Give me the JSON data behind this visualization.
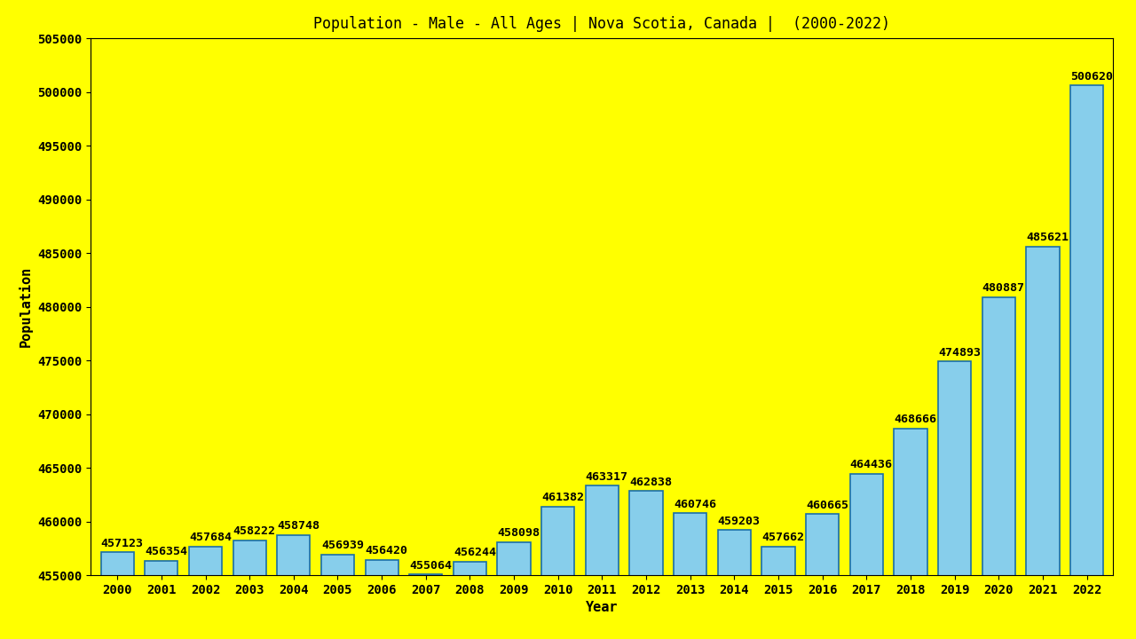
{
  "title": "Population - Male - All Ages | Nova Scotia, Canada |  (2000-2022)",
  "xlabel": "Year",
  "ylabel": "Population",
  "background_color": "#FFFF00",
  "bar_color": "#87CEEB",
  "bar_edge_color": "#1a6ea8",
  "text_color": "#000000",
  "years": [
    2000,
    2001,
    2002,
    2003,
    2004,
    2005,
    2006,
    2007,
    2008,
    2009,
    2010,
    2011,
    2012,
    2013,
    2014,
    2015,
    2016,
    2017,
    2018,
    2019,
    2020,
    2021,
    2022
  ],
  "values": [
    457123,
    456354,
    457684,
    458222,
    458748,
    456939,
    456420,
    455064,
    456244,
    458098,
    461382,
    463317,
    462838,
    460746,
    459203,
    457662,
    460665,
    464436,
    468666,
    474893,
    480887,
    485621,
    500620
  ],
  "ylim": [
    455000,
    505000
  ],
  "yticks": [
    455000,
    460000,
    465000,
    470000,
    475000,
    480000,
    485000,
    490000,
    495000,
    500000,
    505000
  ],
  "title_fontsize": 12,
  "label_fontsize": 11,
  "tick_fontsize": 10,
  "value_fontsize": 9.5
}
